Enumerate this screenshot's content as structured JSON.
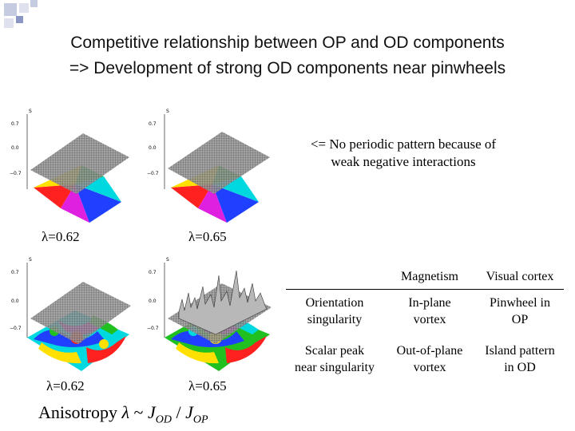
{
  "title": {
    "line1": "Competitive relationship between OP and OD components",
    "line2": "=> Development of strong OD components near pinwheels"
  },
  "note": {
    "line1": "<= No periodic pattern because of",
    "line2": "weak negative interactions"
  },
  "plots": {
    "axis_label": "S",
    "ticks": [
      "0.7",
      "0.0",
      "−0.7"
    ],
    "top_left_lambda": "λ=0.62",
    "top_right_lambda": "λ=0.65",
    "bottom_left_lambda": "λ=0.62",
    "bottom_right_lambda": "λ=0.65"
  },
  "anisotropy": {
    "prefix": "Anisotropy",
    "symbol": "λ",
    "tilde": "~",
    "j": "J",
    "od": "OD",
    "slash": "/",
    "op": "OP"
  },
  "table": {
    "header": [
      "",
      "Magnetism",
      "Visual cortex"
    ],
    "rows": [
      {
        "c0a": "Orientation",
        "c0b": "singularity",
        "c1a": "In-plane",
        "c1b": "vortex",
        "c2a": "Pinwheel in",
        "c2b": "OP"
      },
      {
        "c0a": "Scalar peak",
        "c0b": "near singularity",
        "c1a": "Out-of-plane",
        "c1b": "vortex",
        "c2a": "Island pattern",
        "c2b": "in OD"
      }
    ]
  },
  "colors": {
    "deco_light": "#c5cbe0",
    "deco_dark": "#5a6aa8",
    "pinwheel_red": "#ff2020",
    "pinwheel_yellow": "#ffe000",
    "pinwheel_green": "#20c020",
    "pinwheel_cyan": "#00d8e0",
    "pinwheel_blue": "#2040ff",
    "pinwheel_magenta": "#e020e0"
  }
}
